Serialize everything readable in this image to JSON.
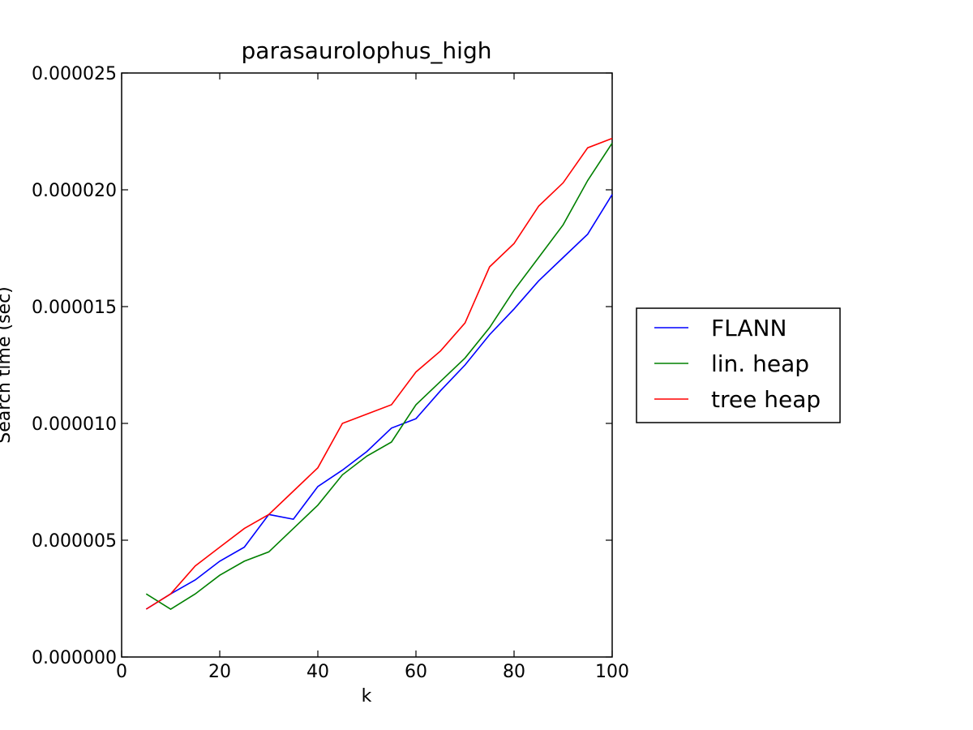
{
  "chart_data": {
    "type": "line",
    "title": "parasaurolophus_high",
    "xlabel": "k",
    "ylabel": "Search time (sec)",
    "xlim": [
      0,
      100
    ],
    "ylim": [
      0,
      2.5e-05
    ],
    "xticks": [
      0,
      20,
      40,
      60,
      80,
      100
    ],
    "xtick_labels": [
      "0",
      "20",
      "40",
      "60",
      "80",
      "100"
    ],
    "yticks": [
      0,
      5e-06,
      1e-05,
      1.5e-05,
      2e-05,
      2.5e-05
    ],
    "ytick_labels": [
      "0.000000",
      "0.000005",
      "0.000010",
      "0.000015",
      "0.000020",
      "0.000025"
    ],
    "grid": false,
    "legend_position": "outside-right",
    "x": [
      5,
      10,
      15,
      20,
      25,
      30,
      35,
      40,
      45,
      50,
      55,
      60,
      65,
      70,
      75,
      80,
      85,
      90,
      95,
      100
    ],
    "series": [
      {
        "name": "FLANN",
        "color": "#0000ff",
        "values": [
          2.05e-06,
          2.7e-06,
          3.3e-06,
          4.1e-06,
          4.7e-06,
          6.1e-06,
          5.9e-06,
          7.3e-06,
          8e-06,
          8.8e-06,
          9.8e-06,
          1.02e-05,
          1.14e-05,
          1.25e-05,
          1.38e-05,
          1.49e-05,
          1.61e-05,
          1.71e-05,
          1.81e-05,
          1.98e-05
        ]
      },
      {
        "name": "lin. heap",
        "color": "#008000",
        "values": [
          2.7e-06,
          2.05e-06,
          2.7e-06,
          3.5e-06,
          4.1e-06,
          4.5e-06,
          5.5e-06,
          6.5e-06,
          7.8e-06,
          8.6e-06,
          9.2e-06,
          1.08e-05,
          1.18e-05,
          1.28e-05,
          1.41e-05,
          1.57e-05,
          1.71e-05,
          1.85e-05,
          2.04e-05,
          2.2e-05
        ]
      },
      {
        "name": "tree heap",
        "color": "#ff0000",
        "values": [
          2.05e-06,
          2.7e-06,
          3.9e-06,
          4.7e-06,
          5.5e-06,
          6.1e-06,
          7.1e-06,
          8.1e-06,
          1e-05,
          1.04e-05,
          1.08e-05,
          1.22e-05,
          1.31e-05,
          1.43e-05,
          1.67e-05,
          1.77e-05,
          1.93e-05,
          2.03e-05,
          2.18e-05,
          2.22e-05
        ]
      }
    ]
  }
}
